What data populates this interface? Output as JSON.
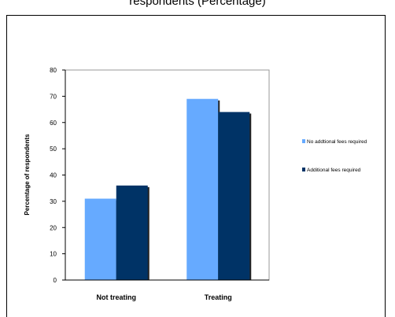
{
  "caption": {
    "text": "respondents (Percentage)"
  },
  "colors": {
    "series1": "#66aaff",
    "series2": "#003366",
    "plot_border": "#999999",
    "axis": "#000000"
  },
  "chart_data": {
    "type": "bar",
    "title": "",
    "xlabel": "",
    "ylabel": "Percentage of respondents",
    "categories": [
      "Not treating",
      "Treating"
    ],
    "series": [
      {
        "name": "No addtional fees required",
        "values": [
          31,
          69
        ]
      },
      {
        "name": "Additional fees required",
        "values": [
          36,
          64
        ]
      }
    ],
    "ylim": [
      0,
      80
    ],
    "yticks": [
      0,
      10,
      20,
      30,
      40,
      50,
      60,
      70,
      80
    ],
    "grid": false,
    "legend_position": "right"
  }
}
